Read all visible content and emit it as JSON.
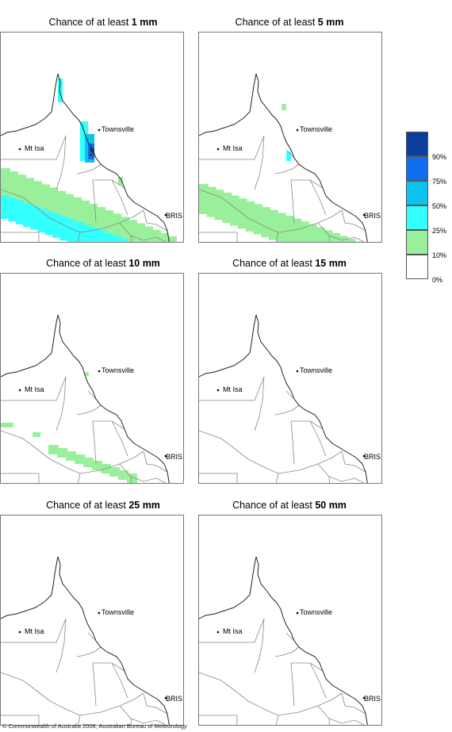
{
  "panels": [
    {
      "title_prefix": "Chance of at least ",
      "threshold": "1 mm",
      "towns": {
        "townsville": "Townsville",
        "mt_isa": "Mt Isa",
        "bris": "BRIS"
      },
      "coverage": "heavy"
    },
    {
      "title_prefix": "Chance of at least ",
      "threshold": "5 mm",
      "towns": {
        "townsville": "Townsville",
        "mt_isa": "Mt Isa",
        "bris": "BRIS"
      },
      "coverage": "medium"
    },
    {
      "title_prefix": "Chance of at least ",
      "threshold": "10 mm",
      "towns": {
        "townsville": "Townsville",
        "mt_isa": "Mt Isa",
        "bris": "BRIS"
      },
      "coverage": "light"
    },
    {
      "title_prefix": "Chance of at least ",
      "threshold": "15 mm",
      "towns": {
        "townsville": "Townsville",
        "mt_isa": "Mt Isa",
        "bris": "BRIS"
      },
      "coverage": "none"
    },
    {
      "title_prefix": "Chance of at least ",
      "threshold": "25 mm",
      "towns": {
        "townsville": "Townsville",
        "mt_isa": "Mt Isa",
        "bris": "BRIS"
      },
      "coverage": "none"
    },
    {
      "title_prefix": "Chance of at least ",
      "threshold": "50 mm",
      "towns": {
        "townsville": "Townsville",
        "mt_isa": "Mt Isa",
        "bris": "BRIS"
      },
      "coverage": "none"
    }
  ],
  "legend": {
    "bands": [
      {
        "label": "90%",
        "color": "#0a3d9c"
      },
      {
        "label": "75%",
        "color": "#0f6ef0"
      },
      {
        "label": "50%",
        "color": "#0cc3ef"
      },
      {
        "label": "25%",
        "color": "#33ffff"
      },
      {
        "label": "10%",
        "color": "#9af09a"
      },
      {
        "label": "0%",
        "color": "#ffffff"
      }
    ]
  },
  "colors": {
    "green": "#9af09a",
    "cyan": "#33ffff",
    "sky": "#0cc3ef",
    "blue": "#0f6ef0",
    "navy": "#0a3d9c"
  },
  "copyright": "© Commonwealth of Australia 2006, Australian Bureau of Meteorology"
}
